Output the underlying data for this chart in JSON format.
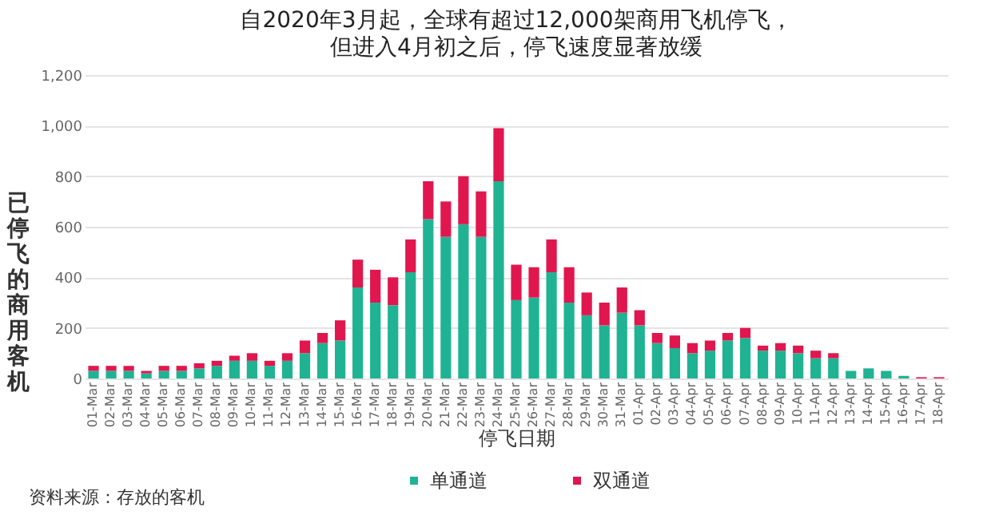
{
  "chart_data": {
    "type": "bar",
    "title": "自2020年3月起，全球有超过12,000架商用飞机停飞，",
    "subtitle": "但进入4月初之后，停飞速度显著放缓",
    "xlabel": "停飞日期",
    "ylabel": "已停飞的商用客机",
    "annotations": [
      "资料来源：存放的客机"
    ],
    "categories": [
      "01-Mar",
      "02-Mar",
      "03-Mar",
      "04-Mar",
      "05-Mar",
      "06-Mar",
      "07-Mar",
      "08-Mar",
      "09-Mar",
      "10-Mar",
      "11-Mar",
      "12-Mar",
      "13-Mar",
      "14-Mar",
      "15-Mar",
      "16-Mar",
      "17-Mar",
      "18-Mar",
      "19-Mar",
      "20-Mar",
      "21-Mar",
      "22-Mar",
      "23-Mar",
      "24-Mar",
      "25-Mar",
      "26-Mar",
      "27-Mar",
      "28-Mar",
      "29-Mar",
      "30-Mar",
      "31-Mar",
      "01-Apr",
      "02-Apr",
      "03-Apr",
      "04-Apr",
      "05-Apr",
      "06-Apr",
      "07-Apr",
      "08-Apr",
      "09-Apr",
      "10-Apr",
      "11-Apr",
      "12-Apr",
      "13-Apr",
      "14-Apr",
      "15-Apr",
      "16-Apr",
      "17-Apr",
      "18-Apr"
    ],
    "stacked": true,
    "series": [
      {
        "name": "单通道",
        "color": "#1fb393",
        "values": [
          30,
          30,
          30,
          20,
          30,
          30,
          40,
          50,
          70,
          70,
          50,
          70,
          100,
          140,
          150,
          360,
          300,
          290,
          420,
          630,
          560,
          610,
          560,
          780,
          310,
          320,
          420,
          300,
          250,
          210,
          260,
          210,
          140,
          120,
          100,
          110,
          150,
          160,
          110,
          110,
          100,
          80,
          80,
          30,
          40,
          30,
          10,
          0,
          0
        ]
      },
      {
        "name": "双通道",
        "color": "#e0174e",
        "values": [
          20,
          20,
          20,
          10,
          20,
          20,
          20,
          20,
          20,
          30,
          20,
          30,
          50,
          40,
          80,
          110,
          130,
          110,
          130,
          150,
          140,
          190,
          180,
          210,
          140,
          120,
          130,
          140,
          90,
          90,
          100,
          60,
          40,
          50,
          40,
          40,
          30,
          40,
          20,
          30,
          30,
          30,
          20,
          0,
          0,
          0,
          0,
          5,
          5
        ]
      }
    ],
    "ylim": [
      0,
      1200
    ],
    "yticks": [
      0,
      200,
      400,
      600,
      800,
      {
        "value": 1000,
        "label": "1,000"
      },
      {
        "value": 1200,
        "label": "1,200"
      }
    ],
    "grid": "y",
    "legend": "bottom"
  }
}
